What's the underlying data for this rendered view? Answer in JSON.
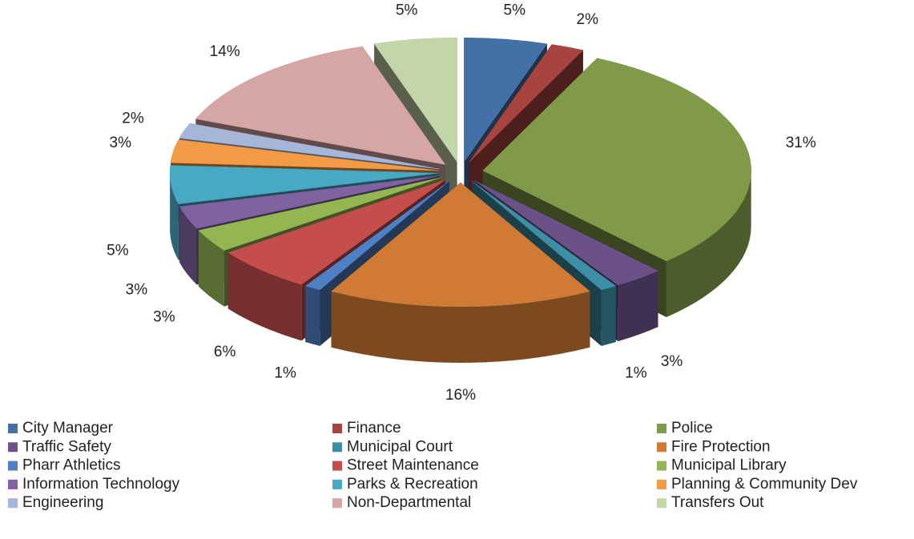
{
  "chart_data": {
    "type": "pie",
    "categories": [
      "City Manager",
      "Finance",
      "Police",
      "Traffic Safety",
      "Municipal Court",
      "Fire Protection",
      "Pharr Athletics",
      "Street Maintenance",
      "Municipal Library",
      "Information Technology",
      "Parks & Recreation",
      "Planning & Community Dev",
      "Engineering",
      "Non-Departmental",
      "Transfers Out"
    ],
    "values": [
      5,
      2,
      31,
      3,
      1,
      16,
      1,
      6,
      3,
      3,
      5,
      3,
      2,
      14,
      5
    ],
    "value_labels": [
      "5%",
      "2%",
      "31%",
      "3%",
      "1%",
      "16%",
      "1%",
      "6%",
      "3%",
      "3%",
      "5%",
      "3%",
      "2%",
      "14%",
      "5%"
    ],
    "colors": [
      "#4470a8",
      "#a84440",
      "#7f9a48",
      "#6a5289",
      "#3c8fa4",
      "#d07b35",
      "#4f7fc4",
      "#c44e4b",
      "#93b653",
      "#7f62a0",
      "#48a9c5",
      "#f39a44",
      "#a6b6d8",
      "#d6a6a5",
      "#c3d6a9"
    ],
    "legend": "bottom"
  }
}
